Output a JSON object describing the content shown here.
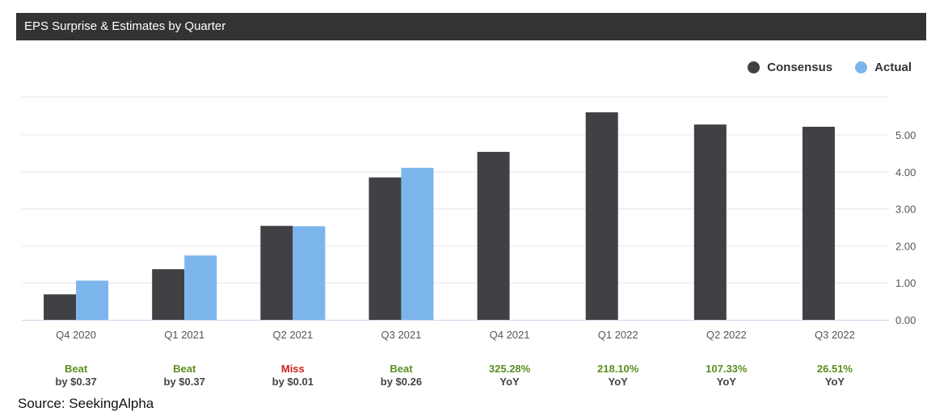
{
  "header": {
    "title": "EPS Surprise & Estimates by Quarter"
  },
  "legend": {
    "items": [
      {
        "label": "Consensus",
        "color": "#414045"
      },
      {
        "label": "Actual",
        "color": "#7cb5ec"
      }
    ]
  },
  "chart_data": {
    "type": "bar",
    "title": "EPS Surprise & Estimates by Quarter",
    "categories": [
      "Q4 2020",
      "Q1 2021",
      "Q2 2021",
      "Q3 2021",
      "Q4 2021",
      "Q1 2022",
      "Q2 2022",
      "Q3 2022"
    ],
    "series": [
      {
        "name": "Consensus",
        "color": "#414045",
        "values": [
          0.69,
          1.37,
          2.54,
          3.85,
          4.54,
          5.61,
          5.28,
          5.22
        ]
      },
      {
        "name": "Actual",
        "color": "#7cb5ec",
        "values": [
          1.06,
          1.74,
          2.53,
          4.11,
          null,
          null,
          null,
          null
        ]
      }
    ],
    "ylim": [
      0,
      6
    ],
    "yticks": [
      "0.00",
      "1.00",
      "2.00",
      "3.00",
      "4.00",
      "5.00"
    ],
    "y_axis_side": "right",
    "grid": true,
    "legend_position": "top-right",
    "annotations": [
      {
        "status": "Beat",
        "detail": "by $0.37",
        "color": "#5a8f1e"
      },
      {
        "status": "Beat",
        "detail": "by $0.37",
        "color": "#5a8f1e"
      },
      {
        "status": "Miss",
        "detail": "by $0.01",
        "color": "#cc1f1f"
      },
      {
        "status": "Beat",
        "detail": "by $0.26",
        "color": "#5a8f1e"
      },
      {
        "status": "325.28%",
        "detail": "YoY",
        "color": "#5a8f1e"
      },
      {
        "status": "218.10%",
        "detail": "YoY",
        "color": "#5a8f1e"
      },
      {
        "status": "107.33%",
        "detail": "YoY",
        "color": "#5a8f1e"
      },
      {
        "status": "26.51%",
        "detail": "YoY",
        "color": "#5a8f1e"
      }
    ]
  },
  "footer": {
    "source": "Source: SeekingAlpha"
  }
}
